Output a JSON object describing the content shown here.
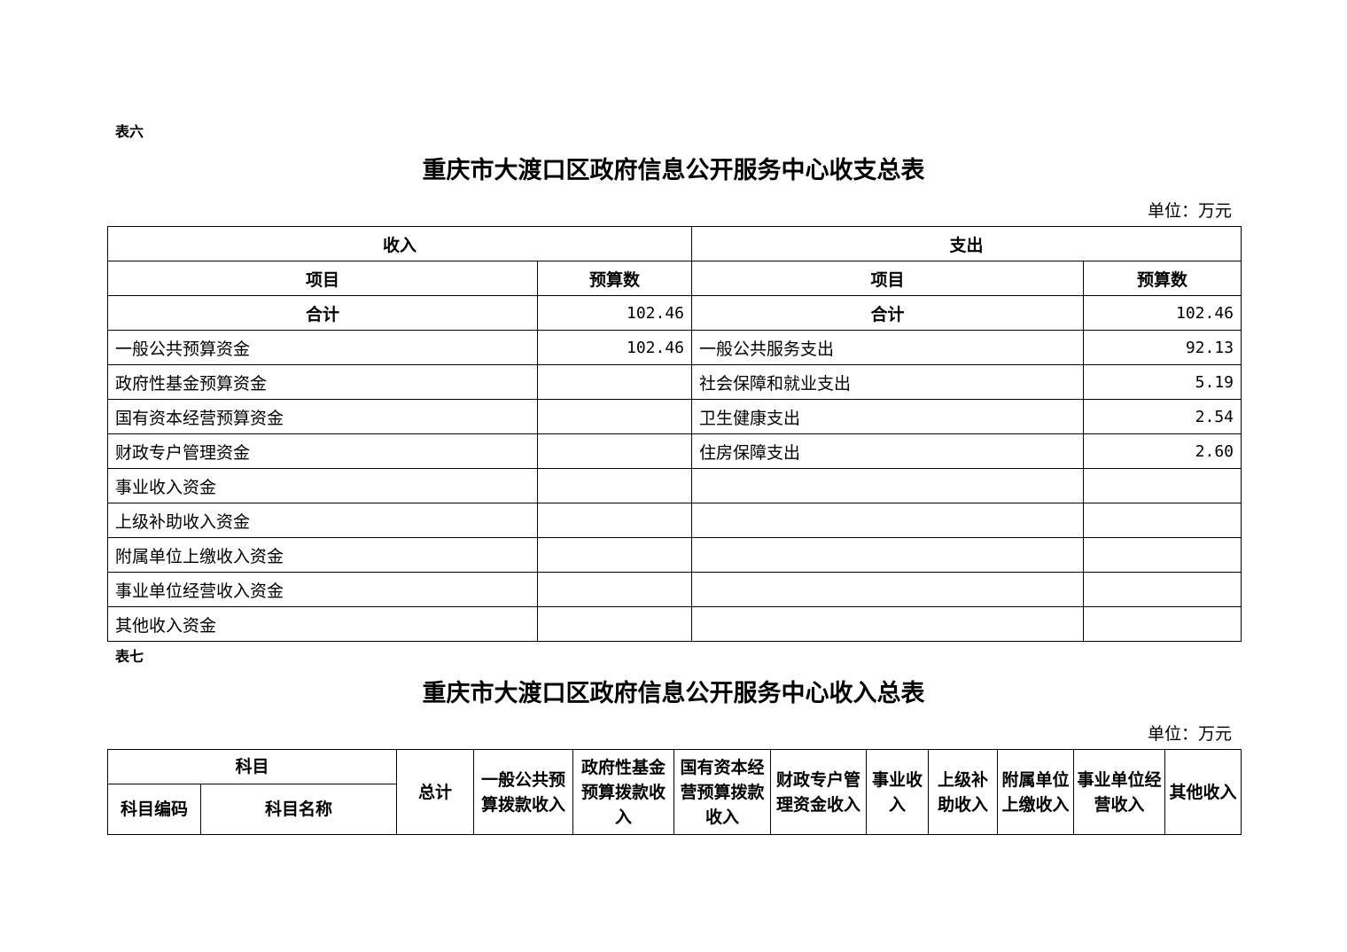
{
  "table6": {
    "label": "表六",
    "title": "重庆市大渡口区政府信息公开服务中心收支总表",
    "unit": "单位：万元",
    "income_header": "收入",
    "expense_header": "支出",
    "col_item": "项目",
    "col_budget": "预算数",
    "total_label": "合计",
    "income_total": "102.46",
    "expense_total": "102.46",
    "rows": [
      {
        "income": "一般公共预算资金",
        "income_value": "102.46",
        "expense": "一般公共服务支出",
        "expense_value": "92.13"
      },
      {
        "income": "政府性基金预算资金",
        "income_value": "",
        "expense": "社会保障和就业支出",
        "expense_value": "5.19"
      },
      {
        "income": "国有资本经营预算资金",
        "income_value": "",
        "expense": "卫生健康支出",
        "expense_value": "2.54"
      },
      {
        "income": "财政专户管理资金",
        "income_value": "",
        "expense": "住房保障支出",
        "expense_value": "2.60"
      },
      {
        "income": "事业收入资金",
        "income_value": "",
        "expense": "",
        "expense_value": ""
      },
      {
        "income": "上级补助收入资金",
        "income_value": "",
        "expense": "",
        "expense_value": ""
      },
      {
        "income": "附属单位上缴收入资金",
        "income_value": "",
        "expense": "",
        "expense_value": ""
      },
      {
        "income": "事业单位经营收入资金",
        "income_value": "",
        "expense": "",
        "expense_value": ""
      },
      {
        "income": "其他收入资金",
        "income_value": "",
        "expense": "",
        "expense_value": ""
      }
    ]
  },
  "table7": {
    "label": "表七",
    "title": "重庆市大渡口区政府信息公开服务中心收入总表",
    "unit": "单位：万元",
    "subject": "科目",
    "subject_code": "科目编码",
    "subject_name": "科目名称",
    "columns": [
      "总计",
      "一般公共预算拨款收入",
      "政府性基金预算拨款收入",
      "国有资本经营预算拨款收入",
      "财政专户管理资金收入",
      "事业收入",
      "上级补助收入",
      "附属单位上缴收入",
      "事业单位经营收入",
      "其他收入"
    ]
  }
}
